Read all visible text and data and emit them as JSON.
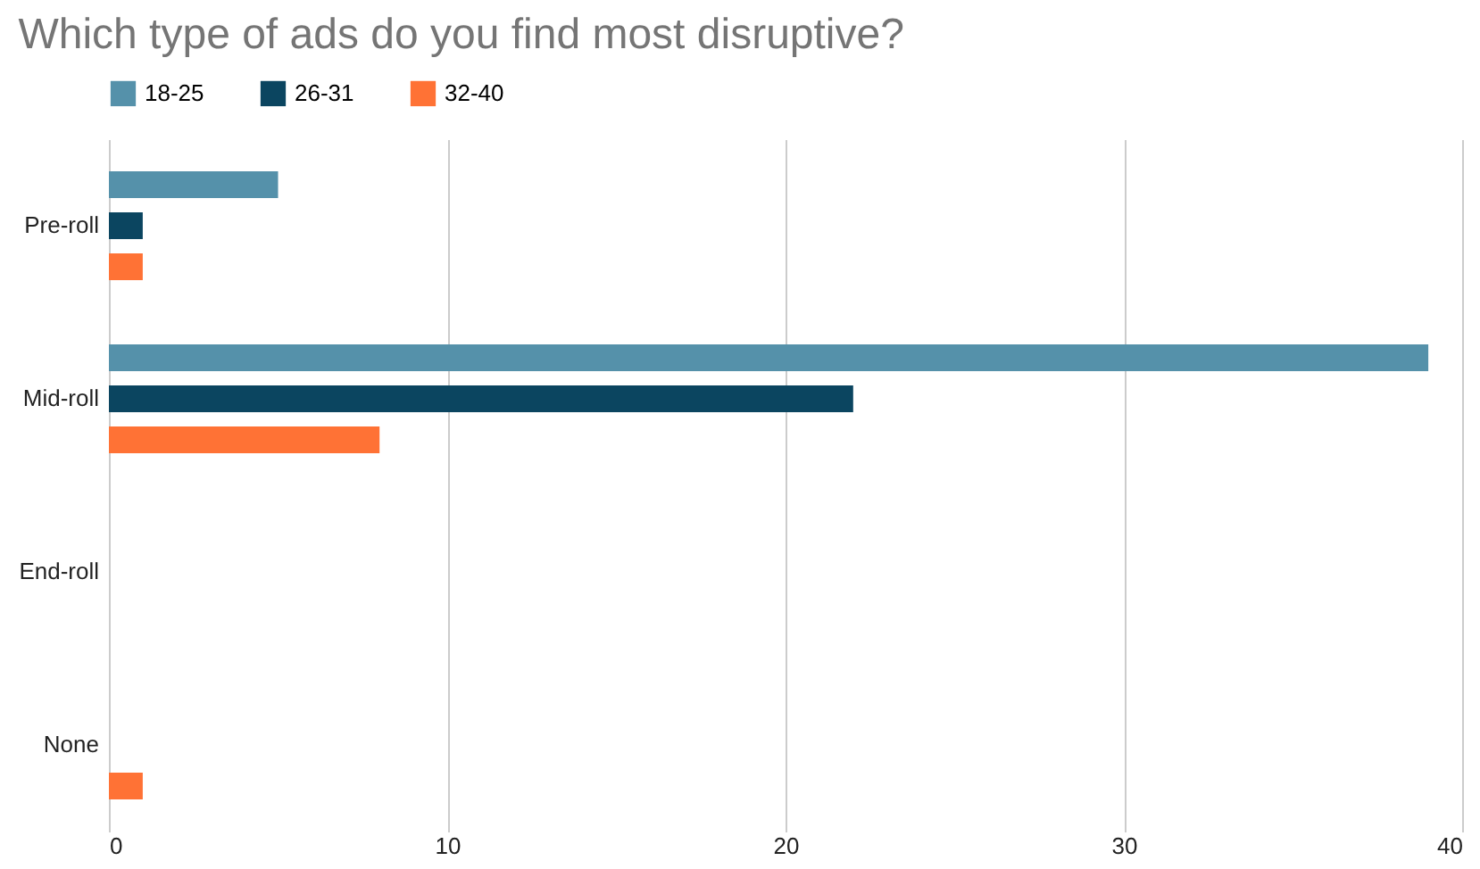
{
  "chart_data": {
    "type": "bar",
    "orientation": "horizontal",
    "title": "Which type of ads do you find most disruptive?",
    "categories": [
      "Pre-roll",
      "Mid-roll",
      "End-roll",
      "None"
    ],
    "series": [
      {
        "name": "18-25",
        "color": "#5591aa",
        "values": [
          5,
          39,
          0,
          0
        ]
      },
      {
        "name": "26-31",
        "color": "#0b4560",
        "values": [
          1,
          22,
          0,
          0
        ]
      },
      {
        "name": "32-40",
        "color": "#ff7235",
        "values": [
          1,
          8,
          0,
          1
        ]
      }
    ],
    "xlim": [
      0,
      40
    ],
    "xticks": [
      0,
      10,
      20,
      30,
      40
    ],
    "grid": "x",
    "legend": "top"
  }
}
